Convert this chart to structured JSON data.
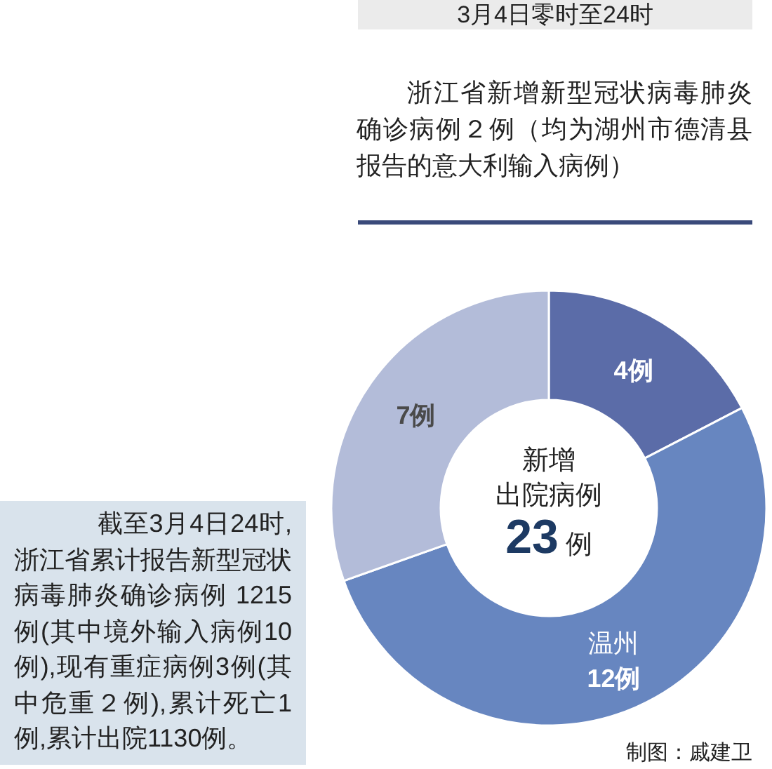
{
  "chart_data": {
    "type": "donut",
    "categories": [
      null,
      "温州",
      null
    ],
    "values": [
      4,
      12,
      7
    ],
    "colors": [
      "#5b6ca8",
      "#6786c0",
      "#b3bcd9"
    ],
    "value_labels": [
      "4例",
      "12例",
      "7例"
    ],
    "annotations": [
      "3月4日零时至24时",
      "浙江省新增新型冠状病毒肺炎确诊病例２例（均为湖州市德清县报告的意大利输入病例）",
      "新增",
      "出院病例",
      "23例",
      "截至3月4日24时,浙江省累计报告新型冠状病毒肺炎确诊病例 1215例(其中境外输入病例10例),现有重症病例3例(其中危重２例),累计死亡1例,累计出院1130例。",
      "制图：戚建卫"
    ]
  }
}
